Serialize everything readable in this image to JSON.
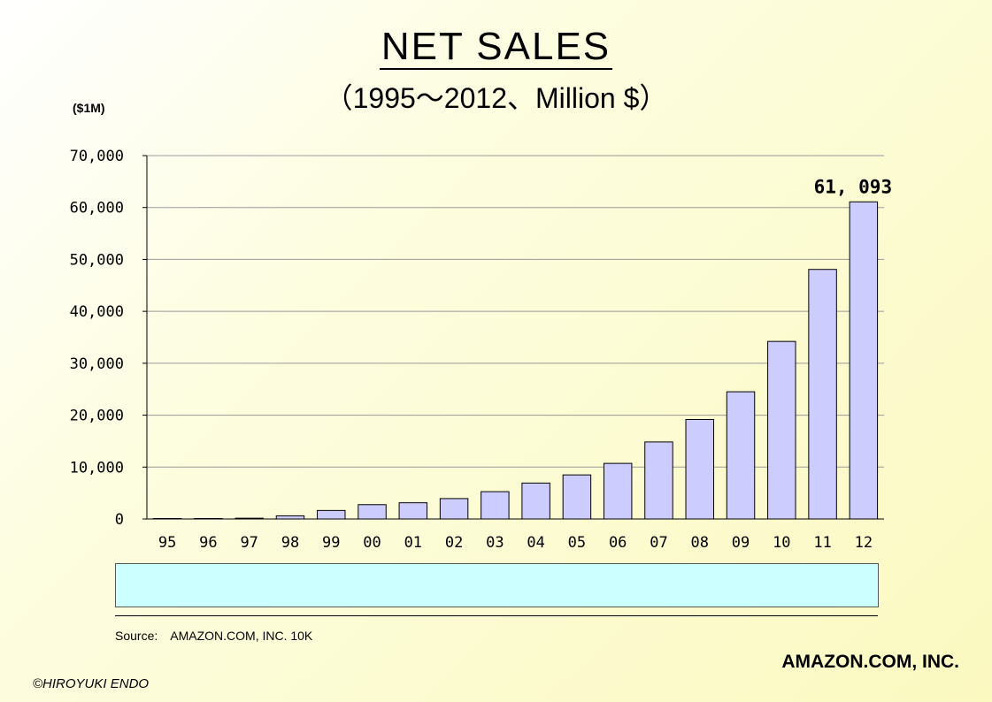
{
  "title": "NET SALES",
  "subtitle": "（1995～2012、Million $）",
  "unit_label": "($1M)",
  "source_label": "Source:",
  "source_text": "AMAZON.COM, INC. 10K",
  "company": "AMAZON.COM, INC.",
  "copyright": "©HIROYUKI ENDO",
  "colors": {
    "bar_fill": "#ccccff",
    "bar_stroke": "#000000",
    "grid": "#999999",
    "legend_box": "#ccffff"
  },
  "chart_data": {
    "type": "bar",
    "title": "NET SALES",
    "subtitle": "（1995～2012、Million $）",
    "ylabel": "($1M)",
    "xlabel": "",
    "ylim": [
      0,
      70000
    ],
    "yticks": [
      0,
      10000,
      20000,
      30000,
      40000,
      50000,
      60000,
      70000
    ],
    "ytick_labels": [
      "0",
      "10,000",
      "20,000",
      "30,000",
      "40,000",
      "50,000",
      "60,000",
      "70,000"
    ],
    "categories": [
      "95",
      "96",
      "97",
      "98",
      "99",
      "00",
      "01",
      "02",
      "03",
      "04",
      "05",
      "06",
      "07",
      "08",
      "09",
      "10",
      "11",
      "12"
    ],
    "values": [
      0.5,
      16,
      148,
      610,
      1640,
      2762,
      3122,
      3933,
      5264,
      6921,
      8490,
      10711,
      14835,
      19166,
      24509,
      34204,
      48077,
      61093
    ],
    "annotations": [
      {
        "category": "12",
        "text": "61, 093"
      }
    ],
    "grid": true
  }
}
